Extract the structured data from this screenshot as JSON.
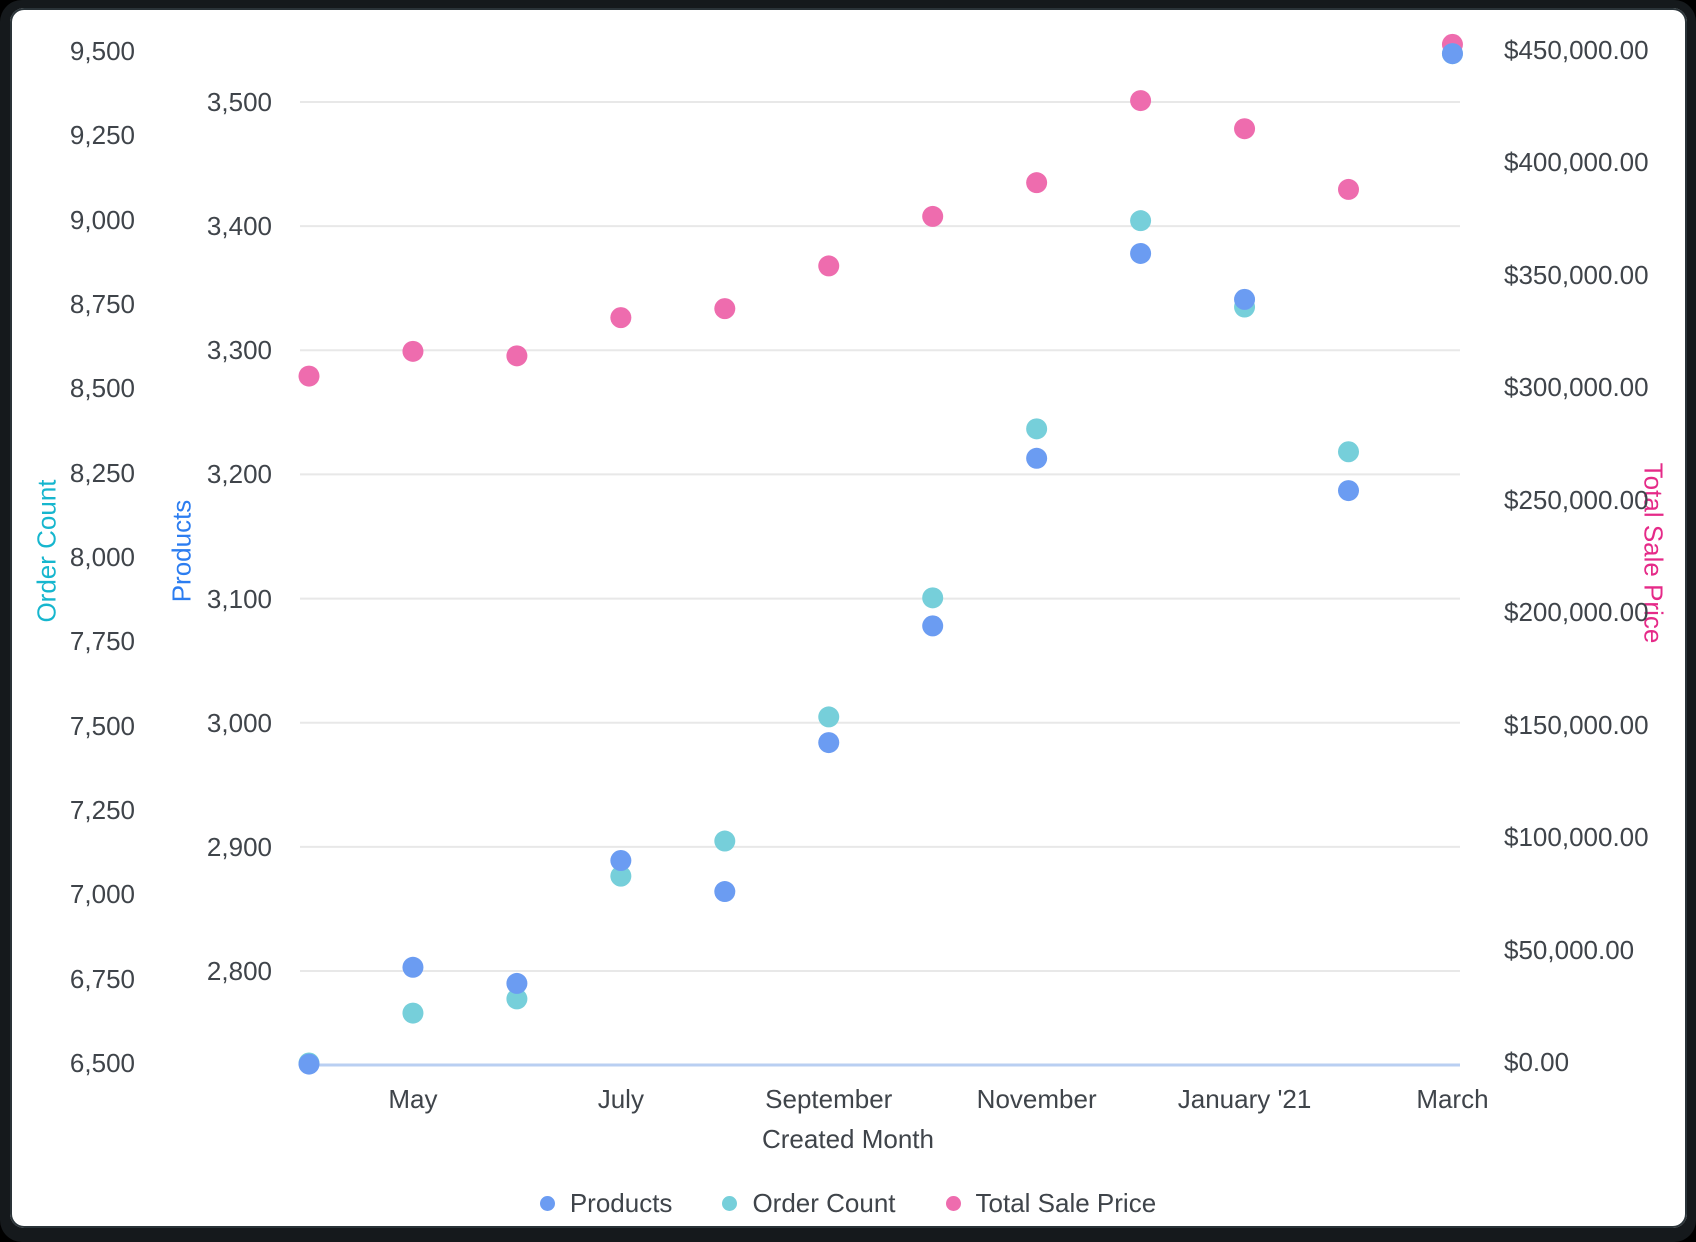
{
  "chart_data": {
    "type": "scatter",
    "title": "",
    "xlabel": "Created Month",
    "x_point_count": 12,
    "x_tick_labels": [
      {
        "index": 1,
        "label": "May"
      },
      {
        "index": 3,
        "label": "July"
      },
      {
        "index": 5,
        "label": "September"
      },
      {
        "index": 7,
        "label": "November"
      },
      {
        "index": 9,
        "label": "January '21"
      },
      {
        "index": 11,
        "label": "March"
      }
    ],
    "series": [
      {
        "name": "Products",
        "axis": "products",
        "color": "#6b9cf2",
        "values": [
          2725,
          2803,
          2790,
          2889,
          2864,
          2984,
          3078,
          3213,
          3378,
          3341,
          3187,
          3539
        ]
      },
      {
        "name": "Order Count",
        "axis": "order_count",
        "color": "#76cfda",
        "values": [
          6500,
          6648,
          6690,
          7054,
          7158,
          7526,
          7879,
          8380,
          8997,
          8741,
          8312,
          9492
        ]
      },
      {
        "name": "Total Sale Price",
        "axis": "total_sale_price",
        "color": "#ee6cae",
        "values": [
          305000,
          316000,
          314000,
          331000,
          335000,
          354000,
          376000,
          391000,
          427500,
          415000,
          388000,
          452500
        ]
      }
    ],
    "axes": {
      "order_count": {
        "title": "Order Count",
        "title_color": "#16b6ce",
        "side": "left",
        "min": 6500,
        "max": 9500,
        "ticks": [
          "9,500",
          "9,250",
          "9,000",
          "8,750",
          "8,500",
          "8,250",
          "8,000",
          "7,750",
          "7,500",
          "7,250",
          "7,000",
          "6,750",
          "6,500"
        ]
      },
      "products": {
        "title": "Products",
        "title_color": "#2c7df0",
        "side": "left",
        "min": 2800,
        "max": 3500,
        "ticks": [
          "3,500",
          "3,400",
          "3,300",
          "3,200",
          "3,100",
          "3,000",
          "2,900",
          "2,800"
        ]
      },
      "total_sale_price": {
        "title": "Total Sale Price",
        "title_color": "#e52a88",
        "side": "right",
        "min": 0,
        "max": 450000,
        "ticks": [
          "$450,000.00",
          "$400,000.00",
          "$350,000.00",
          "$300,000.00",
          "$250,000.00",
          "$200,000.00",
          "$150,000.00",
          "$100,000.00",
          "$50,000.00",
          "$0.00"
        ]
      }
    },
    "legend": {
      "position": "bottom",
      "items": [
        {
          "label": "Products",
          "color": "#6b9cf2"
        },
        {
          "label": "Order Count",
          "color": "#76cfda"
        },
        {
          "label": "Total Sale Price",
          "color": "#ee6cae"
        }
      ]
    },
    "grid": {
      "visible": true,
      "line_color": "#e8e8e8",
      "baseline_color": "#b9cff2"
    }
  },
  "text_color": "#3f444a"
}
